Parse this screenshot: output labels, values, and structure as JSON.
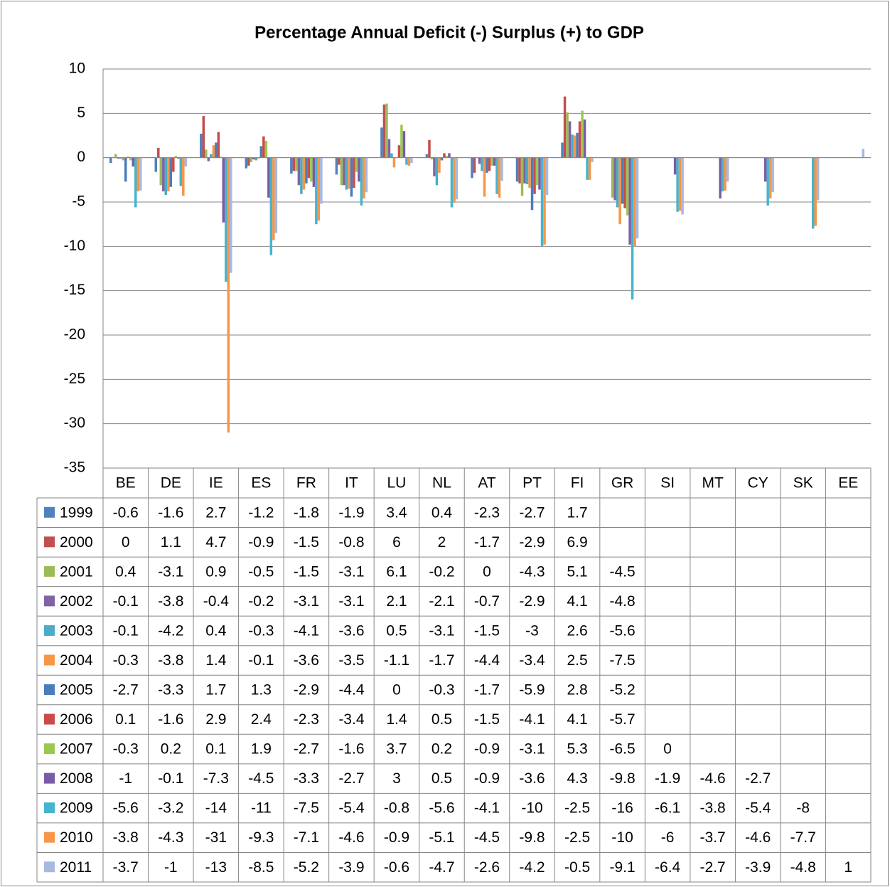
{
  "chart_data": {
    "type": "bar",
    "title": "Percentage Annual Deficit (-) Surplus (+) to GDP",
    "categories": [
      "BE",
      "DE",
      "IE",
      "ES",
      "FR",
      "IT",
      "LU",
      "NL",
      "AT",
      "PT",
      "FI",
      "GR",
      "SI",
      "MT",
      "CY",
      "SK",
      "EE"
    ],
    "ylim": [
      -35,
      10
    ],
    "yticks": [
      10,
      5,
      0,
      -5,
      -10,
      -15,
      -20,
      -25,
      -30,
      -35
    ],
    "grid": true,
    "series": [
      {
        "name": "1999",
        "color": "#4F81BD",
        "values": [
          -0.6,
          -1.6,
          2.7,
          -1.2,
          -1.8,
          -1.9,
          3.4,
          0.4,
          -2.3,
          -2.7,
          1.7,
          null,
          null,
          null,
          null,
          null,
          null
        ]
      },
      {
        "name": "2000",
        "color": "#C0504D",
        "values": [
          0,
          1.1,
          4.7,
          -0.9,
          -1.5,
          -0.8,
          6,
          2,
          -1.7,
          -2.9,
          6.9,
          null,
          null,
          null,
          null,
          null,
          null
        ]
      },
      {
        "name": "2001",
        "color": "#9BBB59",
        "values": [
          0.4,
          -3.1,
          0.9,
          -0.5,
          -1.5,
          -3.1,
          6.1,
          -0.2,
          0,
          -4.3,
          5.1,
          -4.5,
          null,
          null,
          null,
          null,
          null
        ]
      },
      {
        "name": "2002",
        "color": "#8064A2",
        "values": [
          -0.1,
          -3.8,
          -0.4,
          -0.2,
          -3.1,
          -3.1,
          2.1,
          -2.1,
          -0.7,
          -2.9,
          4.1,
          -4.8,
          null,
          null,
          null,
          null,
          null
        ]
      },
      {
        "name": "2003",
        "color": "#4BACC6",
        "values": [
          -0.1,
          -4.2,
          0.4,
          -0.3,
          -4.1,
          -3.6,
          0.5,
          -3.1,
          -1.5,
          -3,
          2.6,
          -5.6,
          null,
          null,
          null,
          null,
          null
        ]
      },
      {
        "name": "2004",
        "color": "#F79646",
        "values": [
          -0.3,
          -3.8,
          1.4,
          -0.1,
          -3.6,
          -3.5,
          -1.1,
          -1.7,
          -4.4,
          -3.4,
          2.5,
          -7.5,
          null,
          null,
          null,
          null,
          null
        ]
      },
      {
        "name": "2005",
        "color": "#4A7EBB",
        "values": [
          -2.7,
          -3.3,
          1.7,
          1.3,
          -2.9,
          -4.4,
          0,
          -0.3,
          -1.7,
          -5.9,
          2.8,
          -5.2,
          null,
          null,
          null,
          null,
          null
        ]
      },
      {
        "name": "2006",
        "color": "#CB4B4A",
        "values": [
          0.1,
          -1.6,
          2.9,
          2.4,
          -2.3,
          -3.4,
          1.4,
          0.5,
          -1.5,
          -4.1,
          4.1,
          -5.7,
          null,
          null,
          null,
          null,
          null
        ]
      },
      {
        "name": "2007",
        "color": "#9BC94F",
        "values": [
          -0.3,
          0.2,
          0.1,
          1.9,
          -2.7,
          -1.6,
          3.7,
          0.2,
          -0.9,
          -3.1,
          5.3,
          -6.5,
          0,
          null,
          null,
          null,
          null
        ]
      },
      {
        "name": "2008",
        "color": "#7A5BA8",
        "values": [
          -1,
          -0.1,
          -7.3,
          -4.5,
          -3.3,
          -2.7,
          3,
          0.5,
          -0.9,
          -3.6,
          4.3,
          -9.8,
          -1.9,
          -4.6,
          -2.7,
          null,
          null
        ]
      },
      {
        "name": "2009",
        "color": "#45B4CF",
        "values": [
          -5.6,
          -3.2,
          -14,
          -11,
          -7.5,
          -5.4,
          -0.8,
          -5.6,
          -4.1,
          -10,
          -2.5,
          -16,
          -6.1,
          -3.8,
          -5.4,
          -8,
          null
        ]
      },
      {
        "name": "2010",
        "color": "#F79646",
        "values": [
          -3.8,
          -4.3,
          -31,
          -9.3,
          -7.1,
          -4.6,
          -0.9,
          -5.1,
          -4.5,
          -9.8,
          -2.5,
          -10,
          -6,
          -3.7,
          -4.6,
          -7.7,
          null
        ]
      },
      {
        "name": "2011",
        "color": "#A7B9E0",
        "values": [
          -3.7,
          -1,
          -13,
          -8.5,
          -5.2,
          -3.9,
          -0.6,
          -4.7,
          -2.6,
          -4.2,
          -0.5,
          -9.1,
          -6.4,
          -2.7,
          -3.9,
          -4.8,
          1
        ]
      }
    ]
  }
}
